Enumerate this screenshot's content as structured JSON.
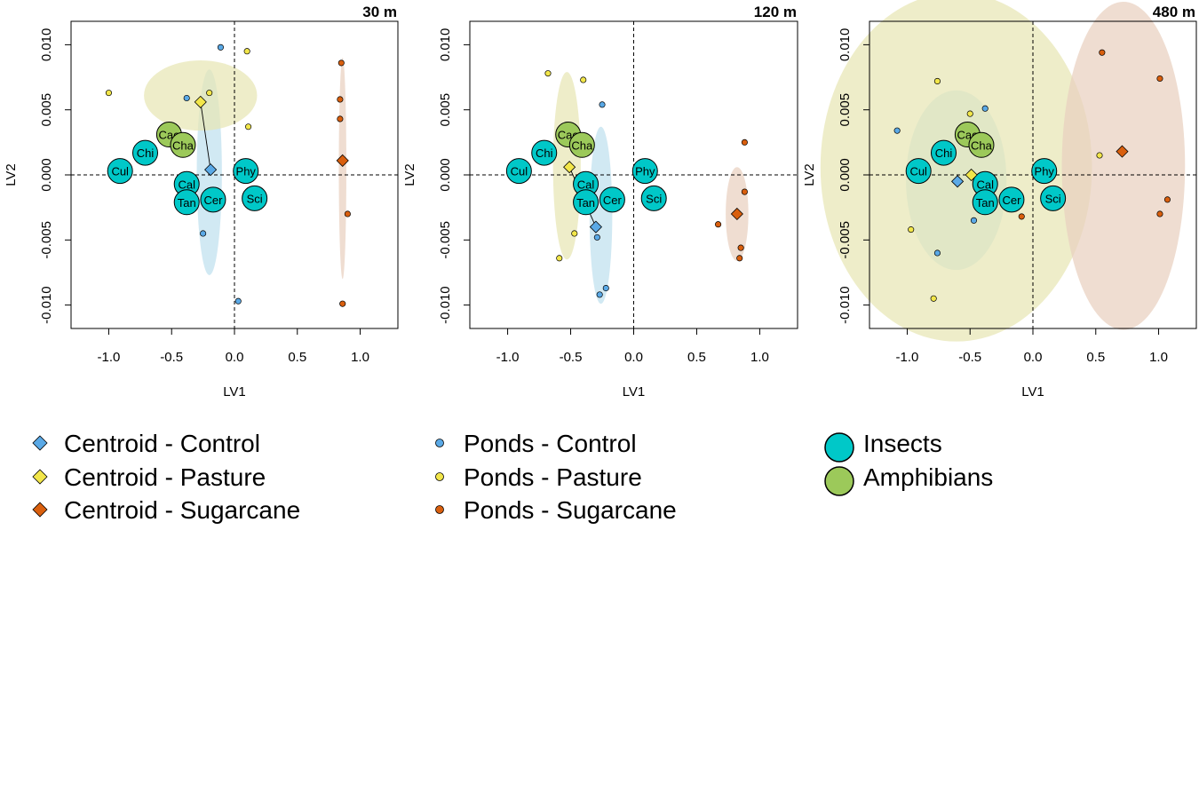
{
  "figure": {
    "colors": {
      "control": "#5aa9e6",
      "pasture": "#f2e64a",
      "sugarcane": "#d95f0e",
      "control_ellipse": "#bfe0ee",
      "pasture_ellipse": "#e8e6b4",
      "sugarcane_ellipse": "#e9d0bf",
      "insects": "#00c8c8",
      "amphibians": "#9cc95a"
    },
    "legend": {
      "centroids": [
        "Centroid - Control",
        "Centroid - Pasture",
        "Centroid - Sugarcane"
      ],
      "ponds": [
        "Ponds - Control",
        "Ponds - Pasture",
        "Ponds - Sugarcane"
      ],
      "taxa": [
        "Insects",
        "Amphibians"
      ]
    }
  },
  "chart_data": [
    {
      "type": "scatter",
      "title": "30 m",
      "xlabel": "LV1",
      "ylabel": "LV2",
      "xlim": [
        -1.3,
        1.3
      ],
      "ylim": [
        -0.0118,
        0.0118
      ],
      "xticks": [
        -1.0,
        -0.5,
        0.0,
        0.5,
        1.0
      ],
      "yticks": [
        -0.01,
        -0.005,
        0.0,
        0.005,
        0.01
      ],
      "xtick_labels": [
        "-1.0",
        "-0.5",
        "0.0",
        "0.5",
        "1.0"
      ],
      "ytick_labels": [
        "-0.010",
        "-0.005",
        "0.000",
        "0.005",
        "0.010"
      ],
      "species": [
        {
          "label": "Cul",
          "group": "insects",
          "x": -0.91,
          "y": 0.0003
        },
        {
          "label": "Chi",
          "group": "insects",
          "x": -0.71,
          "y": 0.0017
        },
        {
          "label": "Cae",
          "group": "amphibians",
          "x": -0.52,
          "y": 0.0031
        },
        {
          "label": "Cha",
          "group": "amphibians",
          "x": -0.41,
          "y": 0.0023
        },
        {
          "label": "Cal",
          "group": "insects",
          "x": -0.38,
          "y": -0.0007
        },
        {
          "label": "Tan",
          "group": "insects",
          "x": -0.38,
          "y": -0.0021
        },
        {
          "label": "Cer",
          "group": "insects",
          "x": -0.17,
          "y": -0.0019
        },
        {
          "label": "Phy",
          "group": "insects",
          "x": 0.09,
          "y": 0.0003
        },
        {
          "label": "Sci",
          "group": "insects",
          "x": 0.16,
          "y": -0.0018
        }
      ],
      "ponds": {
        "control": [
          [
            -0.11,
            0.0098
          ],
          [
            -0.38,
            0.0059
          ],
          [
            -0.25,
            -0.0045
          ],
          [
            0.03,
            -0.0097
          ]
        ],
        "pasture": [
          [
            -1.0,
            0.0063
          ],
          [
            0.1,
            0.0095
          ],
          [
            -0.2,
            0.0063
          ],
          [
            0.11,
            0.0037
          ]
        ],
        "sugarcane": [
          [
            0.85,
            0.0086
          ],
          [
            0.84,
            0.0058
          ],
          [
            0.84,
            0.0043
          ],
          [
            0.9,
            -0.003
          ],
          [
            0.86,
            -0.0099
          ]
        ]
      },
      "centroids": {
        "control": [
          -0.19,
          0.0004
        ],
        "pasture": [
          -0.27,
          0.0056
        ],
        "sugarcane": [
          0.86,
          0.0011
        ]
      },
      "ellipses": {
        "control": {
          "cx": -0.2,
          "cy": 0.0002,
          "rx": 0.1,
          "ry": 0.0079
        },
        "pasture": {
          "cx": -0.27,
          "cy": 0.0061,
          "rx": 0.45,
          "ry": 0.0027
        },
        "sugarcane": {
          "cx": 0.86,
          "cy": 0.0005,
          "rx": 0.03,
          "ry": 0.0085
        }
      }
    },
    {
      "type": "scatter",
      "title": "120 m",
      "xlabel": "LV1",
      "ylabel": "LV2",
      "xlim": [
        -1.3,
        1.3
      ],
      "ylim": [
        -0.0118,
        0.0118
      ],
      "xticks": [
        -1.0,
        -0.5,
        0.0,
        0.5,
        1.0
      ],
      "yticks": [
        -0.01,
        -0.005,
        0.0,
        0.005,
        0.01
      ],
      "xtick_labels": [
        "-1.0",
        "-0.5",
        "0.0",
        "0.5",
        "1.0"
      ],
      "ytick_labels": [
        "-0.010",
        "-0.005",
        "0.000",
        "0.005",
        "0.010"
      ],
      "species": [
        {
          "label": "Cul",
          "group": "insects",
          "x": -0.91,
          "y": 0.0003
        },
        {
          "label": "Chi",
          "group": "insects",
          "x": -0.71,
          "y": 0.0017
        },
        {
          "label": "Cae",
          "group": "amphibians",
          "x": -0.52,
          "y": 0.0031
        },
        {
          "label": "Cha",
          "group": "amphibians",
          "x": -0.41,
          "y": 0.0023
        },
        {
          "label": "Cal",
          "group": "insects",
          "x": -0.38,
          "y": -0.0007
        },
        {
          "label": "Tan",
          "group": "insects",
          "x": -0.38,
          "y": -0.0021
        },
        {
          "label": "Cer",
          "group": "insects",
          "x": -0.17,
          "y": -0.0019
        },
        {
          "label": "Phy",
          "group": "insects",
          "x": 0.09,
          "y": 0.0003
        },
        {
          "label": "Sci",
          "group": "insects",
          "x": 0.16,
          "y": -0.0018
        }
      ],
      "ponds": {
        "control": [
          [
            -0.25,
            0.0054
          ],
          [
            -0.29,
            -0.0048
          ],
          [
            -0.22,
            -0.0087
          ],
          [
            -0.27,
            -0.0092
          ]
        ],
        "pasture": [
          [
            -0.68,
            0.0078
          ],
          [
            -0.4,
            0.0073
          ],
          [
            -0.47,
            -0.0045
          ],
          [
            -0.59,
            -0.0064
          ]
        ],
        "sugarcane": [
          [
            0.88,
            0.0025
          ],
          [
            0.88,
            -0.0013
          ],
          [
            0.67,
            -0.0038
          ],
          [
            0.85,
            -0.0056
          ],
          [
            0.84,
            -0.0064
          ]
        ]
      },
      "centroids": {
        "control": [
          -0.3,
          -0.004
        ],
        "pasture": [
          -0.51,
          0.0006
        ],
        "sugarcane": [
          0.82,
          -0.003
        ]
      },
      "ellipses": {
        "control": {
          "cx": -0.26,
          "cy": -0.0031,
          "rx": 0.09,
          "ry": 0.0068
        },
        "pasture": {
          "cx": -0.53,
          "cy": 0.0007,
          "rx": 0.11,
          "ry": 0.0072
        },
        "sugarcane": {
          "cx": 0.82,
          "cy": -0.003,
          "rx": 0.09,
          "ry": 0.0036
        }
      }
    },
    {
      "type": "scatter",
      "title": "480 m",
      "xlabel": "LV1",
      "ylabel": "LV2",
      "xlim": [
        -1.3,
        1.3
      ],
      "ylim": [
        -0.0118,
        0.0118
      ],
      "xticks": [
        -1.0,
        -0.5,
        0.0,
        0.5,
        1.0
      ],
      "yticks": [
        -0.01,
        -0.005,
        0.0,
        0.005,
        0.01
      ],
      "xtick_labels": [
        "-1.0",
        "-0.5",
        "0.0",
        "0.5",
        "1.0"
      ],
      "ytick_labels": [
        "-0.010",
        "-0.005",
        "0.000",
        "0.005",
        "0.010"
      ],
      "species": [
        {
          "label": "Cul",
          "group": "insects",
          "x": -0.91,
          "y": 0.0003
        },
        {
          "label": "Chi",
          "group": "insects",
          "x": -0.71,
          "y": 0.0017
        },
        {
          "label": "Cae",
          "group": "amphibians",
          "x": -0.52,
          "y": 0.0031
        },
        {
          "label": "Cha",
          "group": "amphibians",
          "x": -0.41,
          "y": 0.0023
        },
        {
          "label": "Cal",
          "group": "insects",
          "x": -0.38,
          "y": -0.0007
        },
        {
          "label": "Tan",
          "group": "insects",
          "x": -0.38,
          "y": -0.0021
        },
        {
          "label": "Cer",
          "group": "insects",
          "x": -0.17,
          "y": -0.0019
        },
        {
          "label": "Phy",
          "group": "insects",
          "x": 0.09,
          "y": 0.0003
        },
        {
          "label": "Sci",
          "group": "insects",
          "x": 0.16,
          "y": -0.0018
        }
      ],
      "ponds": {
        "control": [
          [
            -1.08,
            0.0034
          ],
          [
            -0.38,
            0.0051
          ],
          [
            -0.47,
            -0.0035
          ],
          [
            -0.76,
            -0.006
          ]
        ],
        "pasture": [
          [
            -0.76,
            0.0072
          ],
          [
            -0.5,
            0.0047
          ],
          [
            -0.97,
            -0.0042
          ],
          [
            -0.79,
            -0.0095
          ],
          [
            0.53,
            0.0015
          ]
        ],
        "sugarcane": [
          [
            0.55,
            0.0094
          ],
          [
            1.01,
            0.0074
          ],
          [
            1.07,
            -0.0019
          ],
          [
            1.01,
            -0.003
          ],
          [
            -0.09,
            -0.0032
          ]
        ]
      },
      "centroids": {
        "control": [
          -0.6,
          -0.0005
        ],
        "pasture": [
          -0.49,
          0.0
        ],
        "sugarcane": [
          0.71,
          0.0018
        ]
      },
      "ellipses": {
        "control": {
          "cx": -0.61,
          "cy": -0.0004,
          "rx": 0.4,
          "ry": 0.0069
        },
        "pasture": {
          "cx": -0.61,
          "cy": 0.0006,
          "rx": 1.08,
          "ry": 0.0134
        },
        "sugarcane": {
          "cx": 0.72,
          "cy": 0.0007,
          "rx": 0.49,
          "ry": 0.0126
        }
      }
    }
  ]
}
